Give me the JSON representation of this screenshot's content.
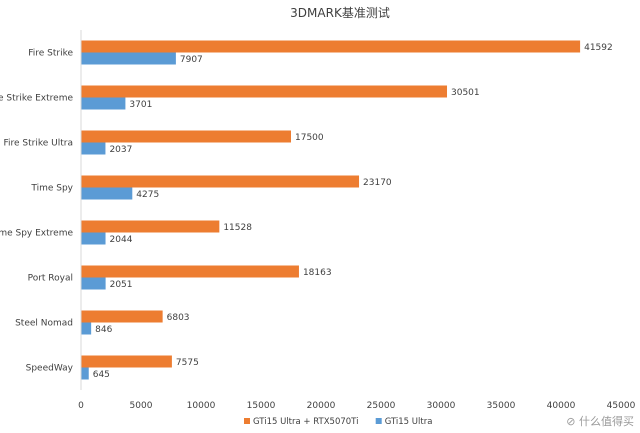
{
  "chart_data": {
    "type": "bar",
    "orientation": "horizontal",
    "title": "3DMARK基准测试",
    "categories": [
      "Fire Strike",
      "Fire Strike Extreme",
      "Fire Strike Ultra",
      "Time Spy",
      "Time Spy Extreme",
      "Port Royal",
      "Steel Nomad",
      "SpeedWay"
    ],
    "series": [
      {
        "name": "GTi15 Ultra + RTX5070Ti",
        "color": "#ED7D31",
        "values": [
          41592,
          30501,
          17500,
          23170,
          11528,
          18163,
          6803,
          7575
        ]
      },
      {
        "name": "GTi15 Ultra",
        "color": "#5B9BD5",
        "values": [
          7907,
          3701,
          2037,
          4275,
          2044,
          2051,
          846,
          645
        ]
      }
    ],
    "xlim": [
      0,
      45000
    ],
    "xticks": [
      0,
      5000,
      10000,
      15000,
      20000,
      25000,
      30000,
      35000,
      40000,
      45000
    ],
    "legend_position": "bottom",
    "data_labels": true,
    "grid": false
  },
  "watermark": "什么值得买"
}
